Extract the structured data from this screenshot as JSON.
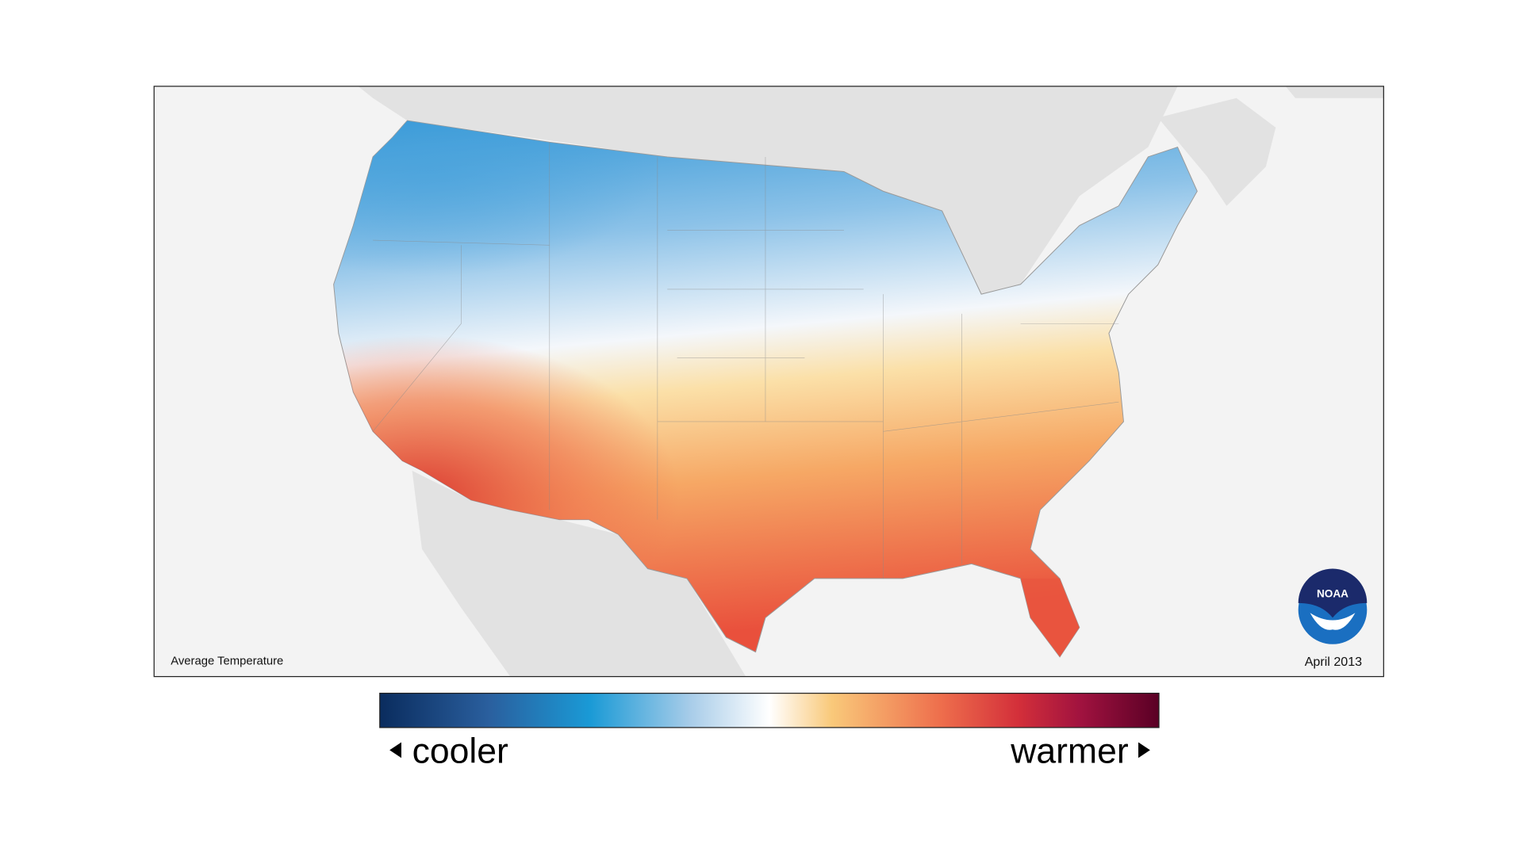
{
  "map": {
    "title": "Average Temperature",
    "date": "April 2013",
    "logo": "NOAA"
  },
  "legend": {
    "low_label": "cooler",
    "high_label": "warmer"
  }
}
